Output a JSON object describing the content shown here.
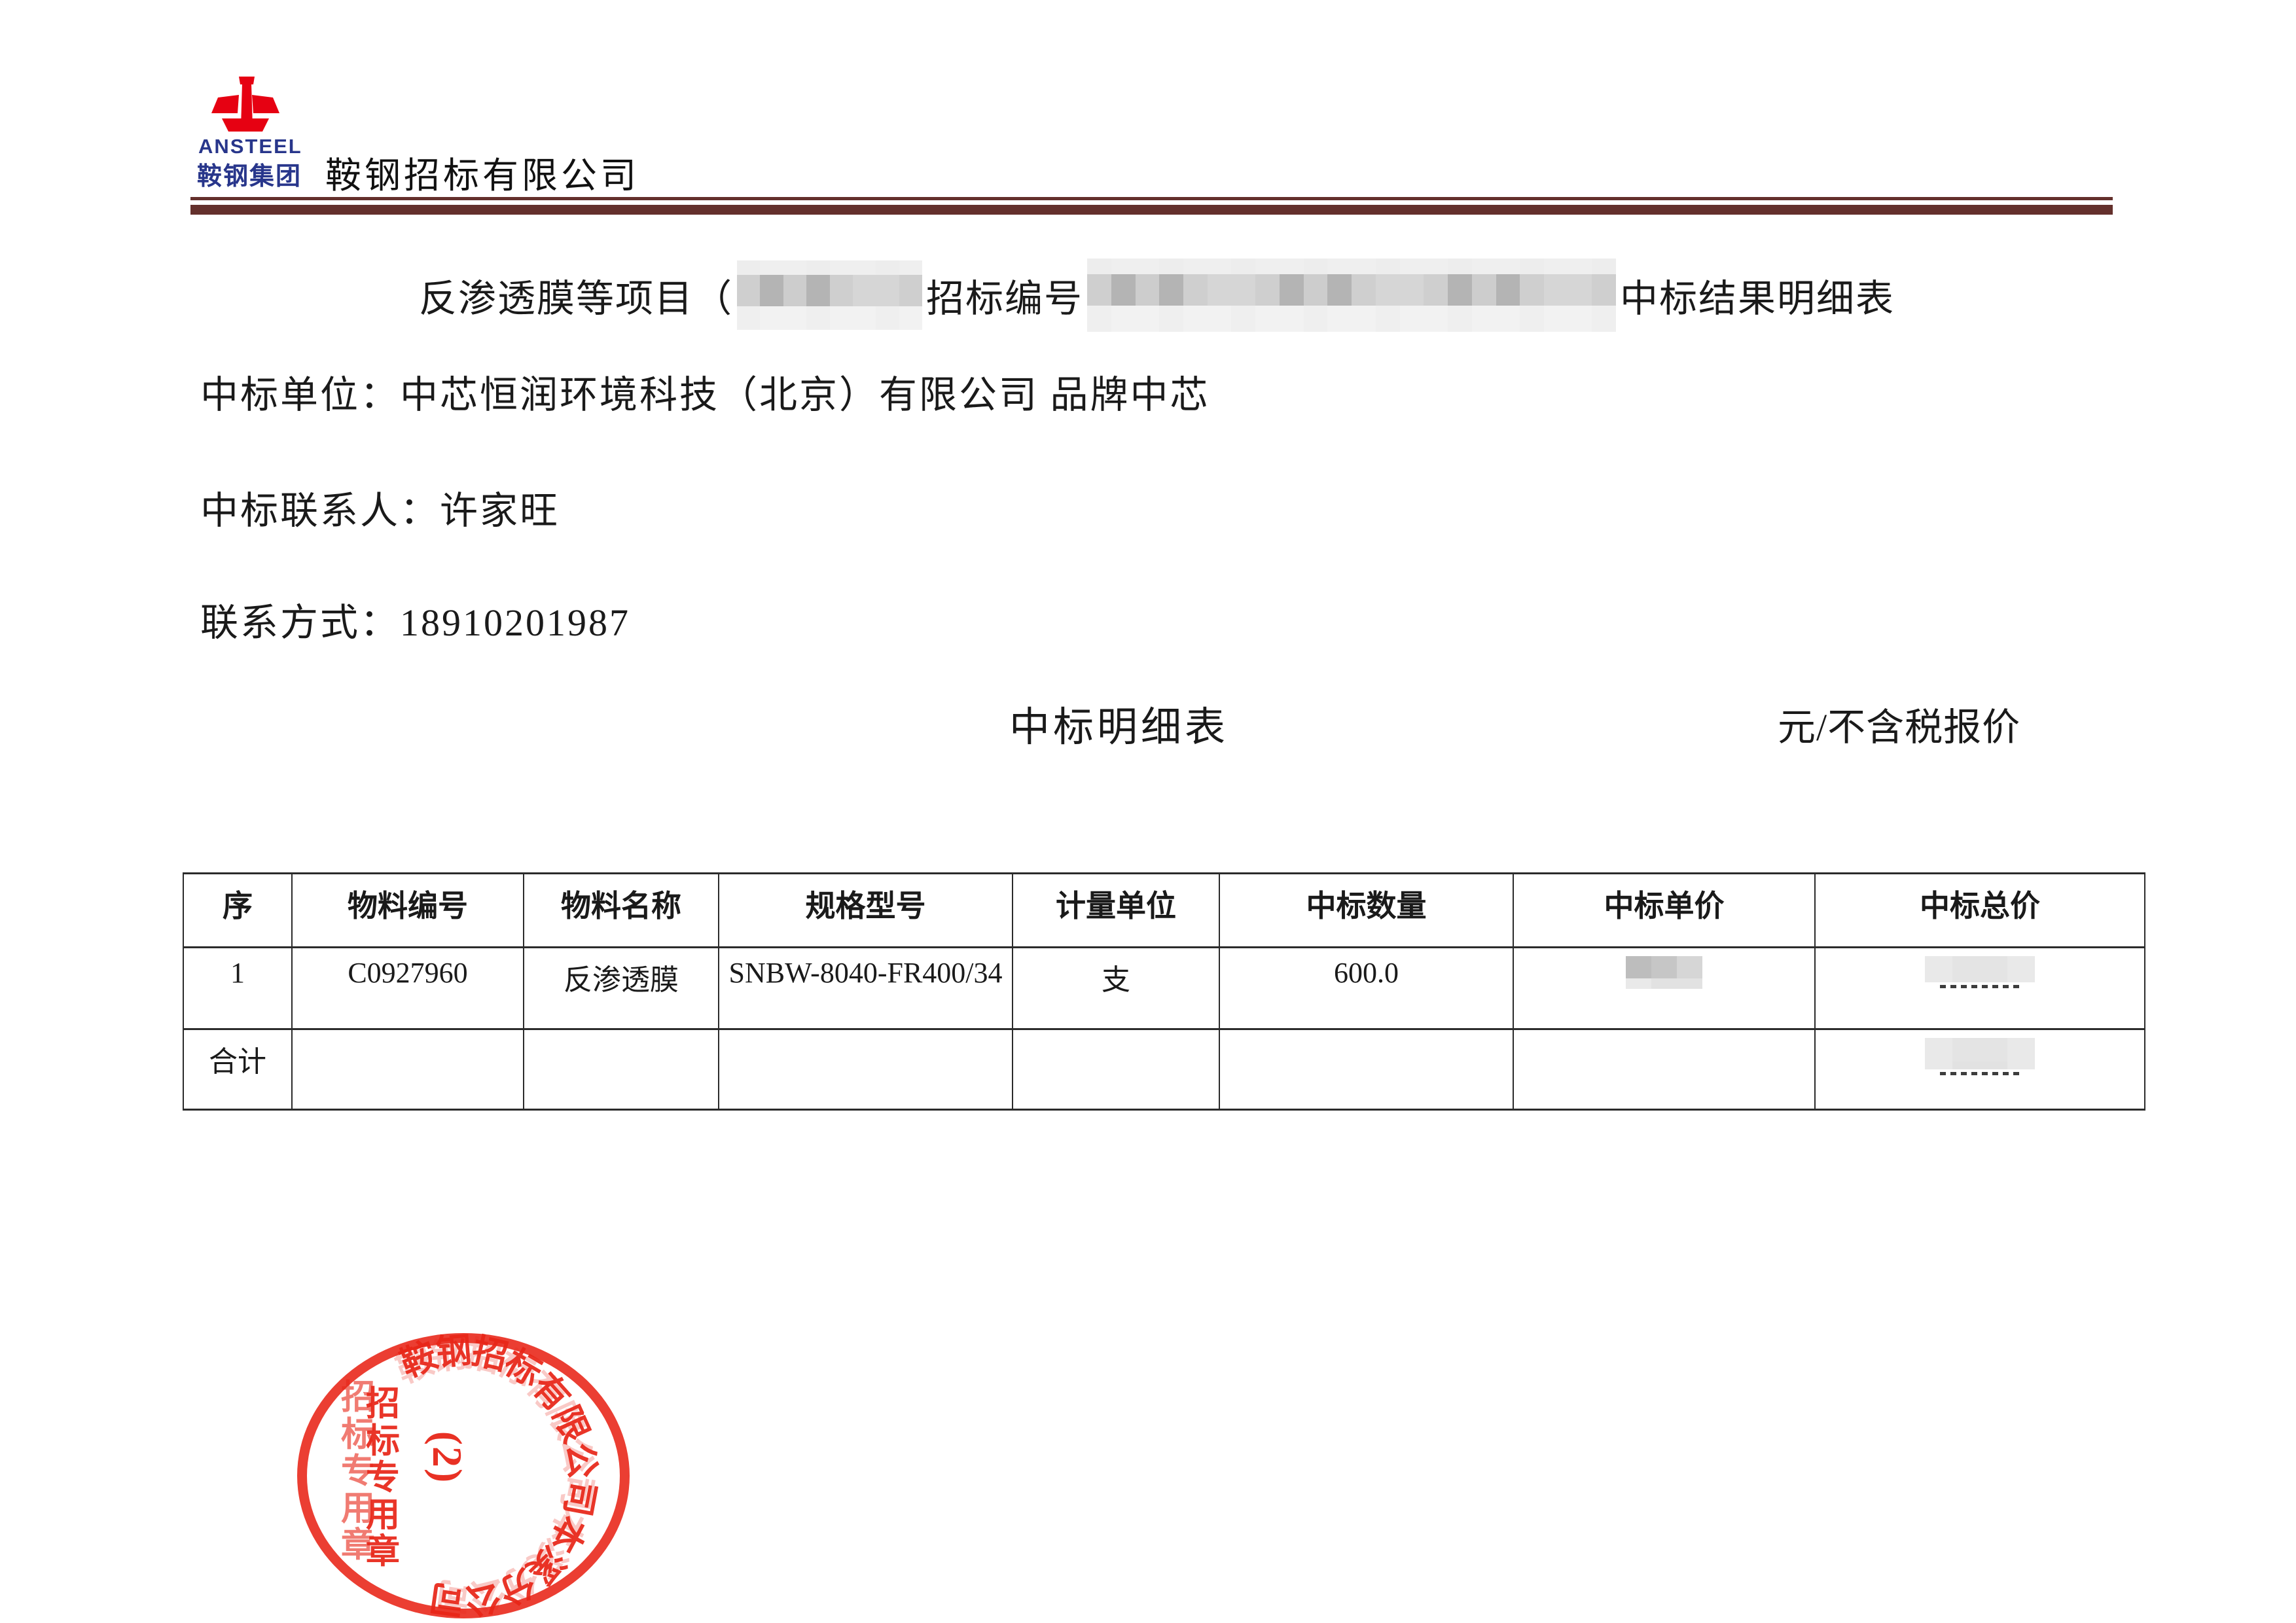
{
  "header": {
    "brand_en": "ANSTEEL",
    "brand_cn": "鞍钢集团",
    "company": "鞍钢招标有限公司"
  },
  "title": {
    "prefix": "反渗透膜等项目（",
    "mid": "招标编号",
    "suffix": "中标结果明细表",
    "redacted_segments": 2
  },
  "info": {
    "winner": "中标单位：中芯恒润环境科技（北京）有限公司 品牌中芯",
    "contact": "中标联系人：许家旺",
    "phone": "联系方式：18910201987"
  },
  "subtitle": {
    "left": "中标明细表",
    "right": "元/不含税报价"
  },
  "table": {
    "headers": [
      "序",
      "物料编号",
      "物料名称",
      "规格型号",
      "计量单位",
      "中标数量",
      "中标单价",
      "中标总价"
    ],
    "row": {
      "seq": "1",
      "material_no": "C0927960",
      "material_name": "反渗透膜",
      "spec": "SNBW-8040-FR400/34",
      "unit": "支",
      "qty": "600.0",
      "unit_price_redacted": "yes",
      "total_price_redacted": "yes"
    },
    "total_label": "合计",
    "total_price_redacted": "yes"
  },
  "stamp": {
    "ring_text": "鞍钢招标有限公司本溪分公司",
    "vertical_text": "招标专用章",
    "center_text": "(2)",
    "color": "#e9291c"
  },
  "colors": {
    "rule_maroon": "#64302c",
    "brand_blue": "#28368b",
    "logo_red": "#e60112",
    "stamp_red": "#e9291c",
    "text_black": "#1a1a1a"
  }
}
